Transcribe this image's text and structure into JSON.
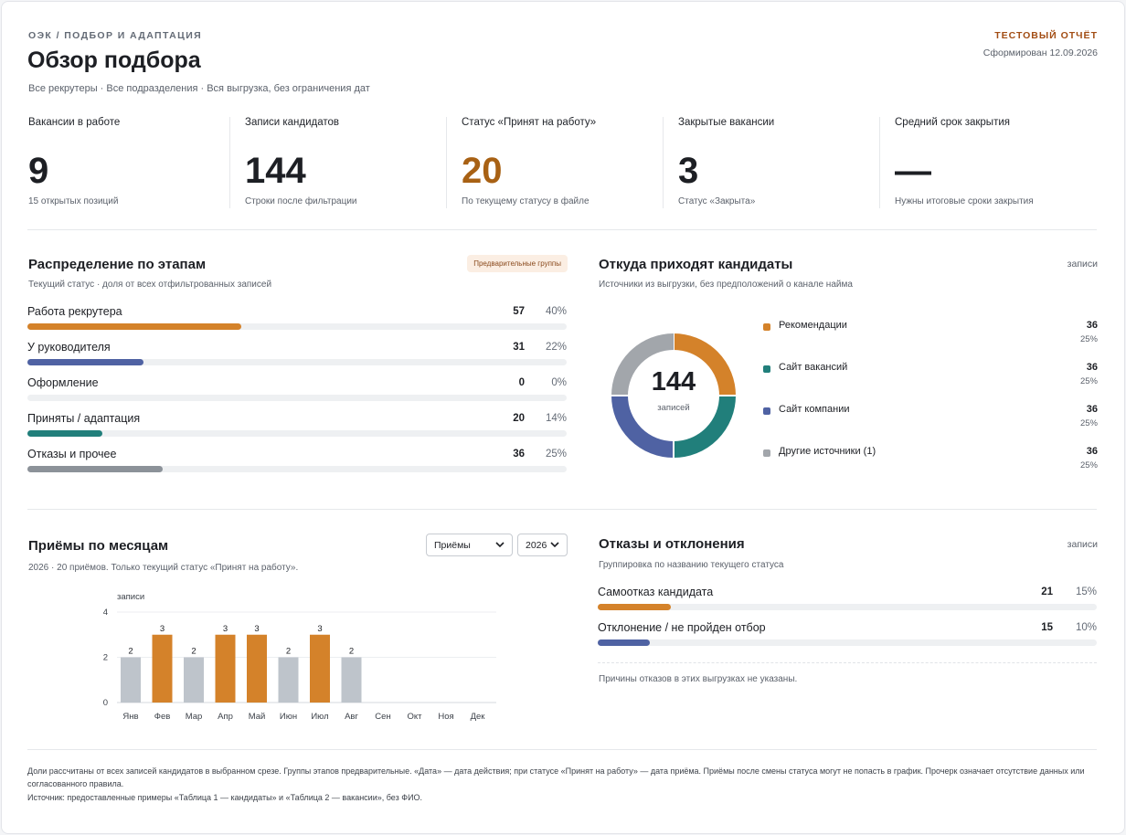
{
  "header": {
    "eyebrow": "ОЭК / ПОДБОР И АДАПТАЦИЯ",
    "title": "Обзор подбора",
    "subtitle": "Все рекрутеры · Все подразделения · Вся выгрузка, без ограничения дат",
    "report_tag": "ТЕСТОВЫЙ ОТЧЁТ",
    "generated": "Сформирован 12.09.2026"
  },
  "kpis": [
    {
      "label": "Вакансии в работе",
      "value": "9",
      "note": "15 открытых позиций",
      "color": "#1d1f24"
    },
    {
      "label": "Записи кандидатов",
      "value": "144",
      "note": "Строки после фильтрации",
      "color": "#1d1f24"
    },
    {
      "label": "Статус «Принят на работу»",
      "value": "20",
      "note": "По текущему статусу в файле",
      "color": "#a86114"
    },
    {
      "label": "Закрытые вакансии",
      "value": "3",
      "note": "Статус «Закрыта»",
      "color": "#1d1f24"
    },
    {
      "label": "Средний срок закрытия",
      "value": "—",
      "note": "Нужны итоговые сроки закрытия",
      "color": "#1d1f24"
    }
  ],
  "stages": {
    "title": "Распределение по этапам",
    "badge": "Предварительные группы",
    "subtitle": "Текущий статус · доля от всех отфильтрованных записей",
    "rows": [
      {
        "label": "Работа рекрутера",
        "count": "57",
        "pct": "40%",
        "frac": 0.396,
        "color": "#d4822a"
      },
      {
        "label": "У руководителя",
        "count": "31",
        "pct": "22%",
        "frac": 0.215,
        "color": "#4f62a3"
      },
      {
        "label": "Оформление",
        "count": "0",
        "pct": "0%",
        "frac": 0,
        "color": "#4f62a3"
      },
      {
        "label": "Приняты / адаптация",
        "count": "20",
        "pct": "14%",
        "frac": 0.139,
        "color": "#217f7b"
      },
      {
        "label": "Отказы и прочее",
        "count": "36",
        "pct": "25%",
        "frac": 0.25,
        "color": "#8c9299"
      }
    ]
  },
  "sources": {
    "title": "Откуда приходят кандидаты",
    "aside": "записи",
    "subtitle": "Источники из выгрузки, без предположений о канале найма",
    "center_value": "144",
    "center_label": "записей",
    "items": [
      {
        "label": "Рекомендации",
        "count": "36",
        "pct": "25%",
        "frac": 0.25,
        "color": "#d4822a"
      },
      {
        "label": "Сайт вакансий",
        "count": "36",
        "pct": "25%",
        "frac": 0.25,
        "color": "#217f7b"
      },
      {
        "label": "Сайт компании",
        "count": "36",
        "pct": "25%",
        "frac": 0.25,
        "color": "#4f62a3"
      },
      {
        "label": "Другие источники (1)",
        "count": "36",
        "pct": "25%",
        "frac": 0.25,
        "color": "#a2a6ab"
      }
    ]
  },
  "hires": {
    "title": "Приёмы по месяцам",
    "subtitle": "2026 · 20 приёмов. Только текущий статус «Принят на работу».",
    "select_metric": "Приёмы",
    "select_year": "2026"
  },
  "chart_data": {
    "type": "bar",
    "ylabel": "записи",
    "ylim": [
      0,
      4
    ],
    "yticks": [
      "0",
      "2",
      "4"
    ],
    "categories": [
      "Янв",
      "Фев",
      "Мар",
      "Апр",
      "Май",
      "Июн",
      "Июл",
      "Авг",
      "Сен",
      "Окт",
      "Ноя",
      "Дек"
    ],
    "values": [
      2,
      3,
      2,
      3,
      3,
      2,
      3,
      2,
      null,
      null,
      null,
      null
    ],
    "highlight_color": "#d4822a",
    "base_color": "#bec4cb",
    "grid": true
  },
  "rejections": {
    "title": "Отказы и отклонения",
    "aside": "записи",
    "subtitle": "Группировка по названию текущего статуса",
    "rows": [
      {
        "label": "Самоотказ кандидата",
        "count": "21",
        "pct": "15%",
        "frac": 0.146,
        "color": "#d4822a"
      },
      {
        "label": "Отклонение / не пройден отбор",
        "count": "15",
        "pct": "10%",
        "frac": 0.104,
        "color": "#4f62a3"
      }
    ],
    "note": "Причины отказов в этих выгрузках не указаны."
  },
  "footer": {
    "line1": "Доли рассчитаны от всех записей кандидатов в выбранном срезе. Группы этапов предварительные. «Дата» — дата действия; при статусе «Принят на работу» — дата приёма. Приёмы после смены статуса могут не попасть в график. Прочерк означает отсутствие данных или согласованного правила.",
    "line2": "Источник: предоставленные примеры «Таблица 1 — кандидаты» и «Таблица 2 — вакансии», без ФИО."
  }
}
